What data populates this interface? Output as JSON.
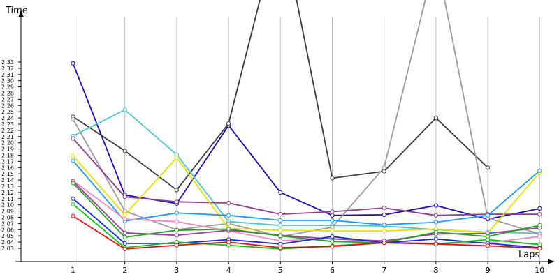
{
  "chart_data": {
    "type": "line",
    "ylabel": "Time",
    "xlabel": "Laps",
    "x": [
      1,
      2,
      3,
      4,
      5,
      6,
      7,
      8,
      9,
      10
    ],
    "ylim_seconds": [
      122,
      156
    ],
    "grid": "vertical",
    "y_ticks": [
      "2:03",
      "2:04",
      "2:05",
      "2:06",
      "2:07",
      "2:08",
      "2:09",
      "2:10",
      "2:11",
      "2:12",
      "2:13",
      "2:14",
      "2:15",
      "2:16",
      "2:17",
      "2:18",
      "2:19",
      "2:20",
      "2:21",
      "2:22",
      "2:23",
      "2:24",
      "2:25",
      "2:26",
      "2:27",
      "2:28",
      "2:29",
      "2:30",
      "2:31",
      "2:32",
      "2:33"
    ],
    "series": [
      {
        "color": "#1a0dab",
        "values_seconds": [
          152.8,
          131.6,
          130.2,
          142.8,
          132.0,
          128.3,
          128.4,
          129.9,
          127.7,
          129.4
        ]
      },
      {
        "color": "#3a3a3a",
        "values_seconds": [
          144.2,
          138.7,
          132.4,
          143.1,
          176.0,
          134.3,
          135.4,
          144.0,
          136.0,
          null
        ]
      },
      {
        "color": "#48c8c8",
        "values_seconds": [
          141.1,
          145.3,
          138.1,
          127.3,
          126.7,
          126.7,
          126.6,
          126.0,
          125.6,
          125.4
        ]
      },
      {
        "color": "#9a9a9a",
        "values_seconds": [
          143.8,
          129.0,
          126.0,
          127.0,
          124.9,
          126.4,
          136.0,
          170.0,
          127.9,
          125.3
        ]
      },
      {
        "color": "#8e3a8e",
        "values_seconds": [
          140.7,
          131.3,
          130.5,
          130.3,
          128.5,
          128.9,
          129.5,
          128.3,
          128.5,
          128.5
        ]
      },
      {
        "color": "#e6e000",
        "values_seconds": [
          137.9,
          128.4,
          137.6,
          126.2,
          125.9,
          125.8,
          125.8,
          126.1,
          125.5,
          135.2
        ]
      },
      {
        "color": "#2196f3",
        "values_seconds": [
          137.1,
          127.4,
          128.7,
          128.3,
          127.5,
          127.5,
          126.8,
          127.2,
          128.3,
          135.5
        ]
      },
      {
        "color": "#ee88c8",
        "values_seconds": [
          133.9,
          127.7,
          127.3,
          125.8,
          124.2,
          124.6,
          124.0,
          123.8,
          123.9,
          124.9
        ]
      },
      {
        "color": "#a040a0",
        "values_seconds": [
          133.8,
          125.5,
          125.1,
          125.9,
          125.1,
          124.5,
          124.2,
          125.3,
          125.4,
          126.3
        ]
      },
      {
        "color": "#23a023",
        "values_seconds": [
          133.5,
          124.8,
          125.9,
          126.1,
          125.0,
          124.1,
          123.9,
          125.6,
          124.9,
          126.7
        ]
      },
      {
        "color": "#1428e0",
        "values_seconds": [
          131.0,
          123.8,
          123.8,
          124.4,
          123.7,
          124.9,
          123.9,
          124.5,
          123.8,
          123.1
        ]
      },
      {
        "color": "#10c010",
        "values_seconds": [
          130.1,
          123.1,
          124.0,
          123.5,
          122.9,
          123.4,
          123.9,
          123.7,
          124.4,
          123.6
        ]
      },
      {
        "color": "#e01010",
        "values_seconds": [
          128.2,
          122.9,
          123.5,
          124.0,
          123.1,
          123.3,
          123.9,
          123.7,
          123.4,
          123.0
        ]
      }
    ]
  }
}
